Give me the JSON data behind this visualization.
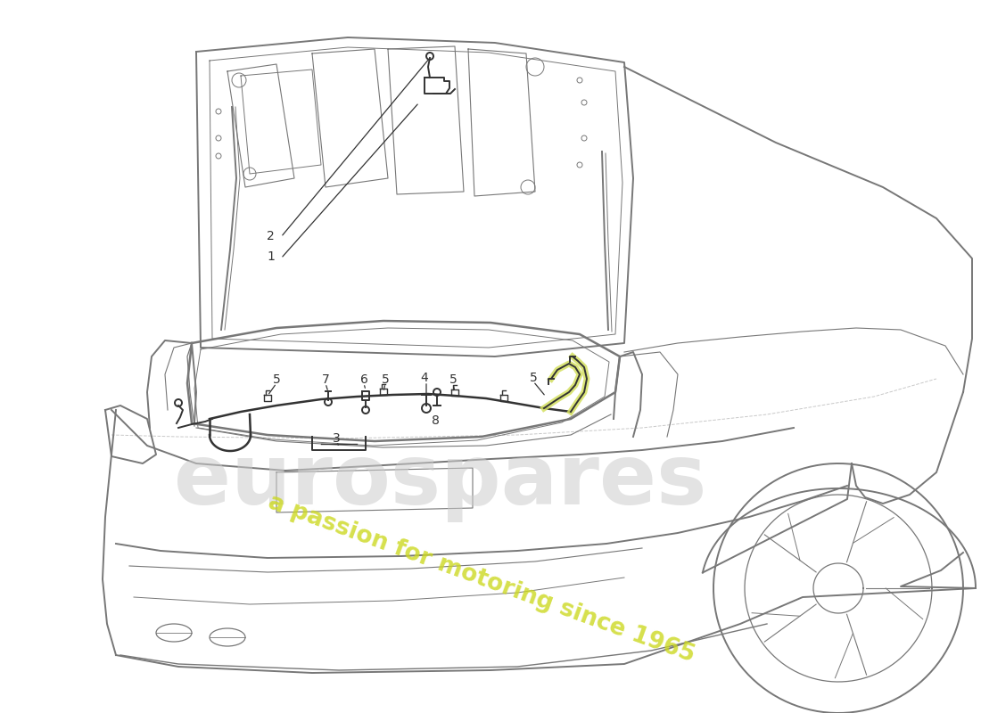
{
  "bg": "#ffffff",
  "cc": "#777777",
  "pc": "#333333",
  "yc": "#d4e060",
  "wm_gray": "#cccccc",
  "wm_yel": "#d8e855",
  "lfs": 10,
  "lc": "#333333",
  "lw": 1.0,
  "lw2": 1.4,
  "lw3": 1.8
}
